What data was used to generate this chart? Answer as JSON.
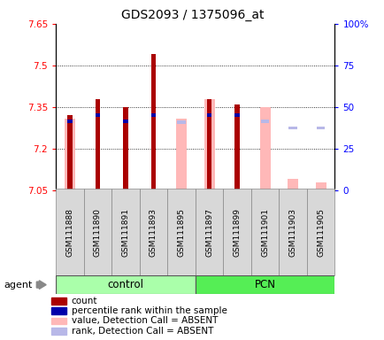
{
  "title": "GDS2093 / 1375096_at",
  "samples": [
    "GSM111888",
    "GSM111890",
    "GSM111891",
    "GSM111893",
    "GSM111895",
    "GSM111897",
    "GSM111899",
    "GSM111901",
    "GSM111903",
    "GSM111905"
  ],
  "ylim_left": [
    7.05,
    7.65
  ],
  "ylim_right": [
    0,
    100
  ],
  "yticks_left": [
    7.05,
    7.2,
    7.35,
    7.5,
    7.65
  ],
  "yticks_right": [
    0,
    25,
    50,
    75,
    100
  ],
  "ytick_labels_left": [
    "7.05",
    "7.2",
    "7.35",
    "7.5",
    "7.65"
  ],
  "ytick_labels_right": [
    "0",
    "25",
    "50",
    "75",
    "100%"
  ],
  "count_values": [
    7.32,
    7.38,
    7.35,
    7.54,
    null,
    7.38,
    7.36,
    null,
    null,
    null
  ],
  "count_bottoms": [
    7.05,
    7.05,
    7.05,
    7.05,
    null,
    7.05,
    7.05,
    null,
    null,
    null
  ],
  "absent_value_top": [
    7.31,
    null,
    null,
    null,
    7.31,
    7.38,
    null,
    7.35,
    7.09,
    7.08
  ],
  "absent_value_bottom": [
    7.05,
    null,
    null,
    null,
    7.05,
    7.05,
    null,
    7.05,
    7.05,
    7.05
  ],
  "percentile_values": [
    7.3,
    7.32,
    7.3,
    7.32,
    null,
    7.32,
    7.32,
    null,
    null,
    null
  ],
  "absent_rank_values": [
    null,
    null,
    null,
    null,
    7.295,
    null,
    null,
    7.3,
    7.275,
    7.275
  ],
  "control_group": [
    0,
    1,
    2,
    3,
    4
  ],
  "pcn_group": [
    5,
    6,
    7,
    8,
    9
  ],
  "bar_color_count": "#aa0000",
  "bar_color_percentile": "#0000aa",
  "bar_color_absent_value": "#ffb8b8",
  "bar_color_absent_rank": "#b8b8e8",
  "group_control_color": "#aaffaa",
  "group_pcn_color": "#55ee55",
  "legend_items": [
    {
      "color": "#aa0000",
      "label": "count"
    },
    {
      "color": "#0000aa",
      "label": "percentile rank within the sample"
    },
    {
      "color": "#ffb8b8",
      "label": "value, Detection Call = ABSENT"
    },
    {
      "color": "#b8b8e8",
      "label": "rank, Detection Call = ABSENT"
    }
  ]
}
